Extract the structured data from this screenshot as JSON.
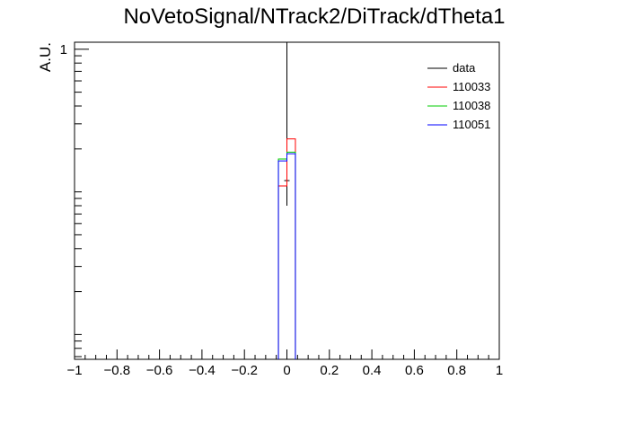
{
  "chart_data": {
    "type": "line",
    "title": "NoVetoSignal/NTrack2/DiTrack/dTheta1",
    "xlabel": "",
    "ylabel": "A.U.",
    "xlim": [
      -1,
      1
    ],
    "log_y": true,
    "ylim": [
      0.0067,
      1.12
    ],
    "x_ticks": [
      "−1",
      "−0.8",
      "−0.6",
      "−0.4",
      "−0.2",
      "0",
      "0.2",
      "0.4",
      "0.6",
      "0.8",
      "1"
    ],
    "y_ticks": [
      "1"
    ],
    "grid": false,
    "legend_position": "top-right",
    "bin_edges": [
      -0.04,
      0,
      0.04
    ],
    "series": [
      {
        "name": "data",
        "color": "#000000",
        "style": "points",
        "x": [
          0.0
        ],
        "y": [
          0.12
        ],
        "yerr_low": [
          0.08
        ],
        "yerr_high": [
          1.12
        ]
      },
      {
        "name": "110033",
        "color": "#ff0000",
        "style": "step",
        "values": [
          0.11,
          0.235
        ]
      },
      {
        "name": "110038",
        "color": "#00cc00",
        "style": "step",
        "values": [
          0.17,
          0.19
        ]
      },
      {
        "name": "110051",
        "color": "#0000ff",
        "style": "step",
        "values": [
          0.165,
          0.185
        ]
      }
    ]
  }
}
